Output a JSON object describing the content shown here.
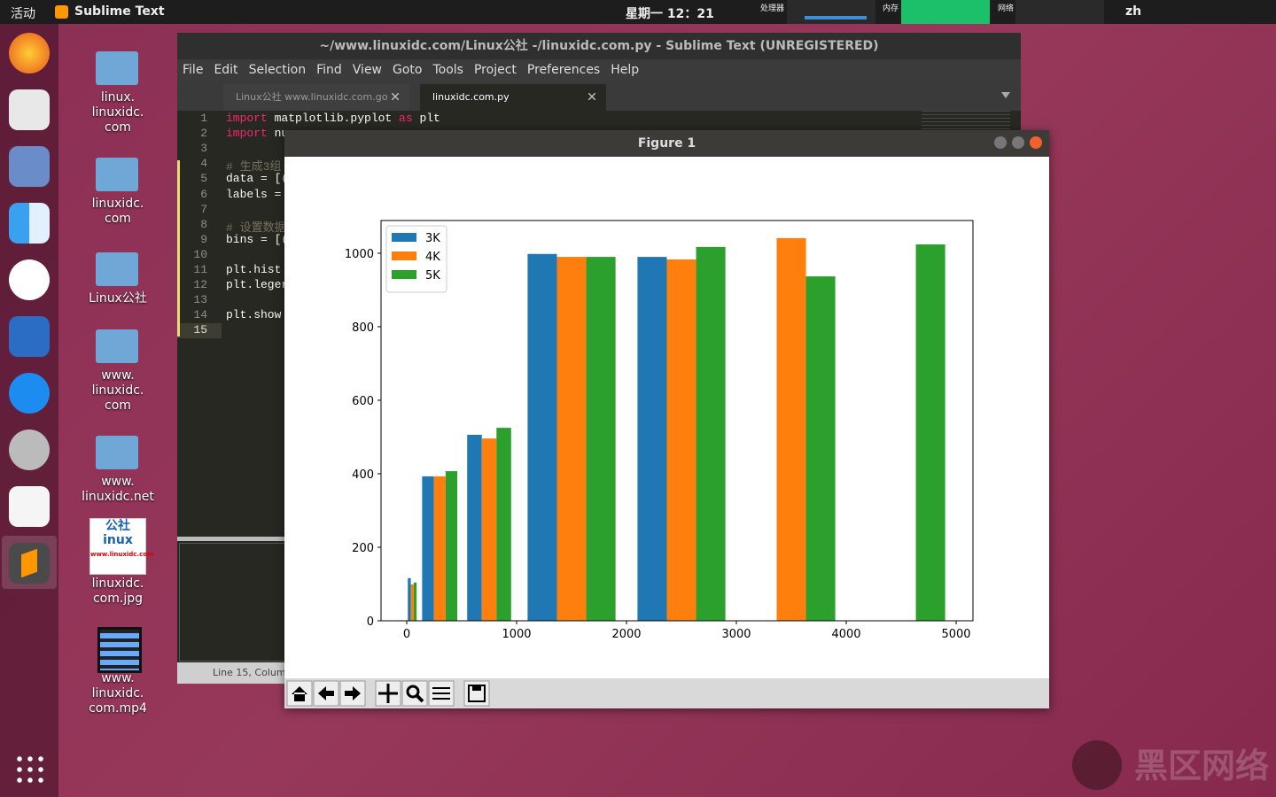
{
  "top_bar": {
    "activities": "活动",
    "app_menu": "Sublime Text",
    "clock": "星期一 12：21",
    "monitors": [
      "处理器",
      "内存",
      "网络"
    ],
    "language": "zh"
  },
  "desktop_icons": [
    {
      "kind": "folder",
      "lines": [
        "linux.",
        "linuxidc.",
        "com"
      ]
    },
    {
      "kind": "folder",
      "lines": [
        "linuxidc.",
        "com"
      ]
    },
    {
      "kind": "folder",
      "lines": [
        "Linux公社"
      ]
    },
    {
      "kind": "folder",
      "lines": [
        "www.",
        "linuxidc.",
        "com"
      ]
    },
    {
      "kind": "folder",
      "lines": [
        "www.",
        "linuxidc.net"
      ]
    },
    {
      "kind": "image",
      "lines": [
        "linuxidc.",
        "com.jpg"
      ],
      "thumb": [
        "公社",
        "inux",
        "www.linuxidc.com"
      ]
    },
    {
      "kind": "video",
      "lines": [
        "www.",
        "linuxidc.",
        "com.mp4"
      ]
    }
  ],
  "editor": {
    "title": "~/www.linuxidc.com/Linux公社 -/linuxidc.com.py - Sublime Text (UNREGISTERED)",
    "menu": [
      "File",
      "Edit",
      "Selection",
      "Find",
      "View",
      "Goto",
      "Tools",
      "Project",
      "Preferences",
      "Help"
    ],
    "tabs": [
      "Linux公社 www.linuxidc.com.go",
      "linuxidc.com.py"
    ],
    "lines": [
      {
        "n": 1,
        "text": "import matplotlib.pyplot as plt"
      },
      {
        "n": 2,
        "text": "import nu"
      },
      {
        "n": 3,
        "text": ""
      },
      {
        "n": 4,
        "text": "# 生成3组"
      },
      {
        "n": 5,
        "text": "data = [("
      },
      {
        "n": 6,
        "text": "labels ="
      },
      {
        "n": 7,
        "text": ""
      },
      {
        "n": 8,
        "text": "# 设置数据"
      },
      {
        "n": 9,
        "text": "bins = [("
      },
      {
        "n": 10,
        "text": ""
      },
      {
        "n": 11,
        "text": "plt.hist"
      },
      {
        "n": 12,
        "text": "plt.leger"
      },
      {
        "n": 13,
        "text": ""
      },
      {
        "n": 14,
        "text": "plt.show"
      },
      {
        "n": 15,
        "text": ""
      }
    ],
    "status": "Line 15, Column"
  },
  "figure": {
    "title": "Figure 1"
  },
  "chart_data": {
    "type": "histogram",
    "bins": [
      0,
      100,
      500,
      1000,
      2000,
      3000,
      4000,
      5000
    ],
    "series": [
      {
        "name": "3K",
        "color": "#1f77b4",
        "values": [
          116,
          393,
          506,
          998,
          990,
          0,
          0
        ]
      },
      {
        "name": "4K",
        "color": "#ff7f0e",
        "values": [
          99,
          393,
          496,
          990,
          983,
          1041,
          0
        ]
      },
      {
        "name": "5K",
        "color": "#2ca02c",
        "values": [
          104,
          407,
          525,
          990,
          1017,
          937,
          1024
        ]
      }
    ],
    "xlim": [
      -234,
      5153
    ],
    "xticks": [
      0,
      1000,
      2000,
      3000,
      4000,
      5000
    ],
    "ylim": [
      0,
      1089
    ],
    "yticks": [
      0,
      200,
      400,
      600,
      800,
      1000
    ],
    "legend": "upper left"
  },
  "watermark": "黑区网络"
}
